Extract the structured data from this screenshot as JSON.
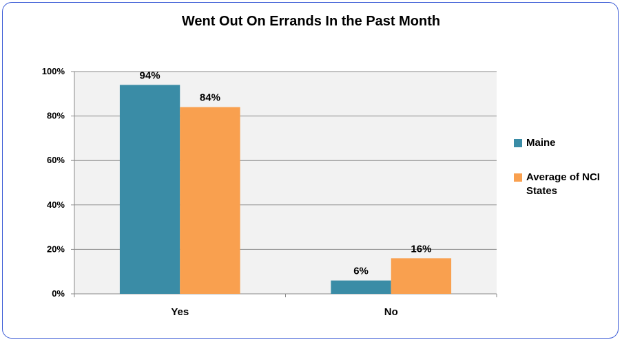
{
  "chart_data": {
    "type": "bar",
    "title": "Went Out On Errands In the Past Month",
    "categories": [
      "Yes",
      "No"
    ],
    "series": [
      {
        "name": "Maine",
        "values": [
          94,
          6
        ],
        "labels": [
          "94%",
          "6%"
        ],
        "color": "#3a8ca6"
      },
      {
        "name": "Average of NCI States",
        "values": [
          84,
          16
        ],
        "labels": [
          "84%",
          "16%"
        ],
        "color": "#f9a04f"
      }
    ],
    "ylim": [
      0,
      100
    ],
    "yticks": [
      "0%",
      "20%",
      "40%",
      "60%",
      "80%",
      "100%"
    ],
    "grid": true,
    "legend_position": "right",
    "plot_background": "#f2f2f2"
  }
}
